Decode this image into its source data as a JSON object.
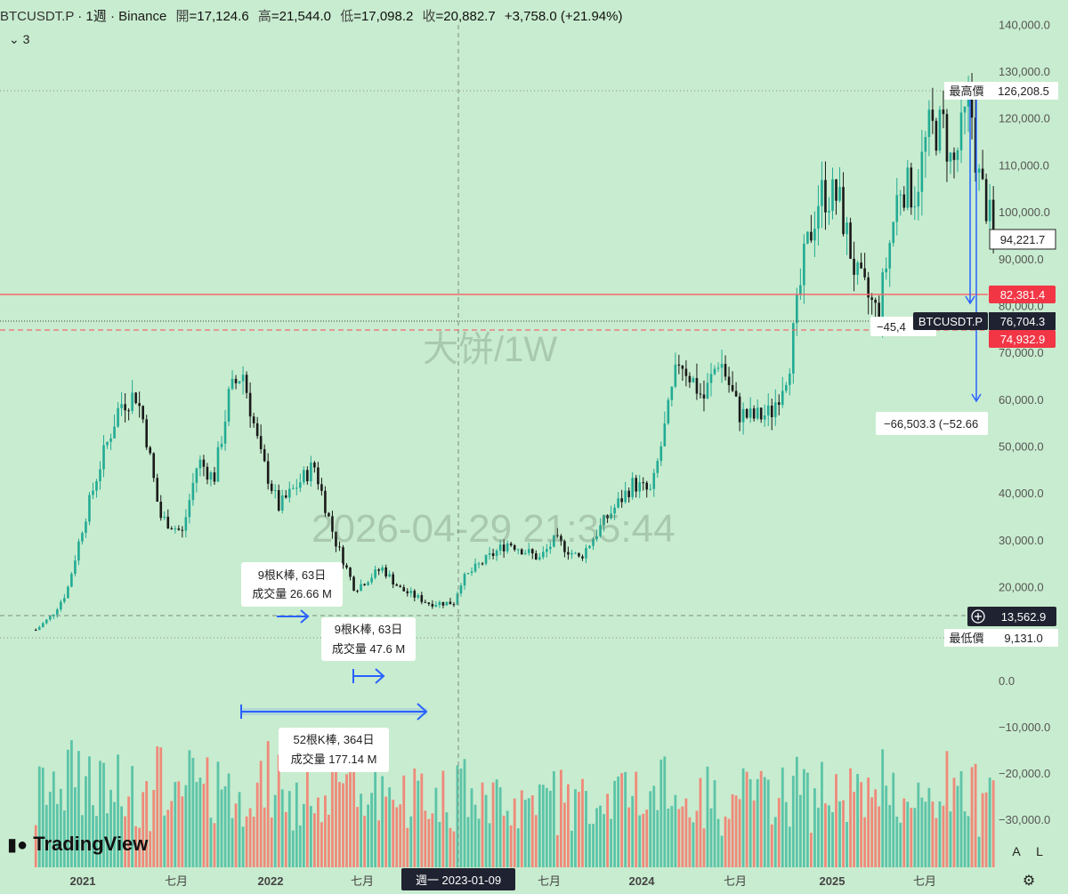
{
  "header": {
    "symbol": "BTCUSDT.P",
    "interval": "1週",
    "exchange": "Binance",
    "open_label": "開",
    "open": "=17,124.6",
    "high_label": "高",
    "high": "=21,544.0",
    "low_label": "低",
    "low": "=17,098.2",
    "close_label": "收",
    "close": "=20,882.7",
    "change": "+3,758.0 (+21.94%)",
    "indicator_count": "3"
  },
  "watermarks": {
    "center": "大饼/1W",
    "datetime": "2026-04-29 21:35:44"
  },
  "logo": "TradingView",
  "axis_buttons": {
    "auto": "A",
    "log": "L"
  },
  "crosshair_label": "週一  2023-01-09",
  "annotations": {
    "max_label": "最高價",
    "max_value": "126,208.5",
    "min_label": "最低價",
    "min_value": "9,131.0",
    "last_price": "94,221.7",
    "level_1": "82,381.4",
    "symbol_tag": "BTCUSDT.P",
    "symbol_tag_value": "76,704.3",
    "level_2": "74,932.9",
    "crosshair_price": "13,562.9",
    "measure_1_line1": "9根K棒, 63日",
    "measure_1_line2": "成交量 26.66 M",
    "measure_2_line1": "9根K棒, 63日",
    "measure_2_line2": "成交量 47.6 M",
    "measure_3_line1": "52根K棒, 364日",
    "measure_3_line2": "成交量 177.14 M",
    "drop_1": "−45,4",
    "drop_2": "−66,503.3 (−52.66"
  },
  "colors": {
    "background": "#c8eccf",
    "up": "#22ab94",
    "down": "#1a1a1a",
    "vol_up": "#5cc4a8",
    "vol_down": "#ef8a7a",
    "red_level": "#f23645",
    "measure_blue": "#2962ff"
  },
  "chart_data": {
    "type": "candlestick",
    "series_type": "weekly OHLC with volume",
    "x_ticks": [
      "2021",
      "七月",
      "2022",
      "七月",
      "週一  2023-01-09",
      "七月",
      "2024",
      "七月",
      "2025",
      "七月"
    ],
    "price_ticks": [
      "140,000.0",
      "130,000.0",
      "120,000.0",
      "110,000.0",
      "100,000.0",
      "90,000.0",
      "80,000.0",
      "70,000.0",
      "60,000.0",
      "50,000.0",
      "40,000.0",
      "30,000.0",
      "20,000.0"
    ],
    "volume_ticks": [
      "0.0",
      "−10,000.0",
      "−20,000.0",
      "−30,000.0"
    ],
    "price_range": [
      5000,
      140000
    ],
    "anchor_closes": [
      {
        "date": "2020-10-01",
        "price": 10800
      },
      {
        "date": "2020-11-01",
        "price": 13800
      },
      {
        "date": "2020-12-01",
        "price": 19000
      },
      {
        "date": "2021-01-01",
        "price": 33000
      },
      {
        "date": "2021-02-01",
        "price": 45000
      },
      {
        "date": "2021-03-15",
        "price": 59000
      },
      {
        "date": "2021-04-15",
        "price": 61000
      },
      {
        "date": "2021-05-01",
        "price": 55000
      },
      {
        "date": "2021-06-01",
        "price": 35000
      },
      {
        "date": "2021-07-15",
        "price": 31500
      },
      {
        "date": "2021-08-15",
        "price": 47000
      },
      {
        "date": "2021-09-15",
        "price": 43000
      },
      {
        "date": "2021-10-15",
        "price": 61000
      },
      {
        "date": "2021-11-10",
        "price": 66000
      },
      {
        "date": "2021-12-15",
        "price": 48000
      },
      {
        "date": "2022-01-20",
        "price": 37000
      },
      {
        "date": "2022-03-30",
        "price": 46000
      },
      {
        "date": "2022-05-10",
        "price": 30000
      },
      {
        "date": "2022-06-18",
        "price": 19500
      },
      {
        "date": "2022-08-10",
        "price": 24000
      },
      {
        "date": "2022-09-15",
        "price": 19500
      },
      {
        "date": "2022-11-10",
        "price": 16500
      },
      {
        "date": "2022-12-31",
        "price": 16600
      },
      {
        "date": "2023-01-09",
        "price": 20882.7
      },
      {
        "date": "2023-02-15",
        "price": 24500
      },
      {
        "date": "2023-04-15",
        "price": 29500
      },
      {
        "date": "2023-06-15",
        "price": 26000
      },
      {
        "date": "2023-07-15",
        "price": 30000
      },
      {
        "date": "2023-09-01",
        "price": 26000
      },
      {
        "date": "2023-10-20",
        "price": 34000
      },
      {
        "date": "2023-12-15",
        "price": 42000
      },
      {
        "date": "2024-01-20",
        "price": 40000
      },
      {
        "date": "2024-03-15",
        "price": 69000
      },
      {
        "date": "2024-05-01",
        "price": 60000
      },
      {
        "date": "2024-06-01",
        "price": 69000
      },
      {
        "date": "2024-07-10",
        "price": 57000
      },
      {
        "date": "2024-08-05",
        "price": 56000
      },
      {
        "date": "2024-09-10",
        "price": 57000
      },
      {
        "date": "2024-10-15",
        "price": 67000
      },
      {
        "date": "2024-11-15",
        "price": 90000
      },
      {
        "date": "2024-12-15",
        "price": 104000
      },
      {
        "date": "2025-01-20",
        "price": 103000
      },
      {
        "date": "2025-02-25",
        "price": 86000
      },
      {
        "date": "2025-04-08",
        "price": 78000
      },
      {
        "date": "2025-05-20",
        "price": 106000
      },
      {
        "date": "2025-06-20",
        "price": 104000
      },
      {
        "date": "2025-07-15",
        "price": 117000
      },
      {
        "date": "2025-08-14",
        "price": 118000
      },
      {
        "date": "2025-09-01",
        "price": 109000
      },
      {
        "date": "2025-10-06",
        "price": 124000
      },
      {
        "date": "2025-10-20",
        "price": 108000
      },
      {
        "date": "2025-11-10",
        "price": 100000
      },
      {
        "date": "2025-11-20",
        "price": 94221.7
      }
    ]
  }
}
